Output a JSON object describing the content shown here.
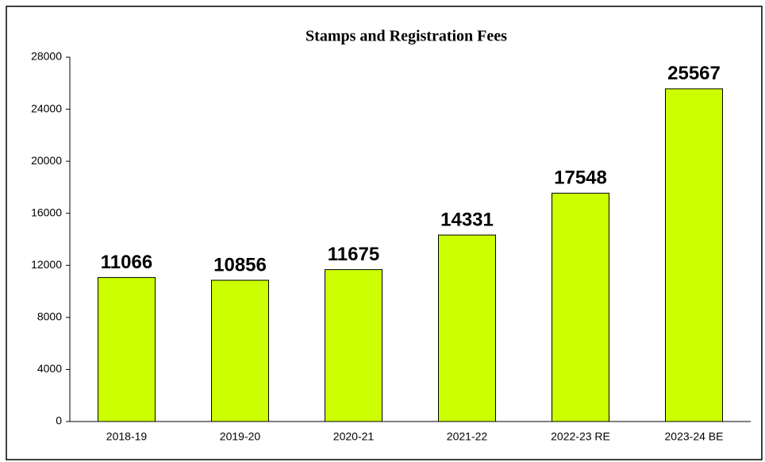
{
  "chart_data": {
    "type": "bar",
    "title": "Stamps and Registration Fees",
    "categories": [
      "2018-19",
      "2019-20",
      "2020-21",
      "2021-22",
      "2022-23 RE",
      "2023-24 BE"
    ],
    "values": [
      11066,
      10856,
      11675,
      14331,
      17548,
      25567
    ],
    "color": "#ccff00",
    "ylim": [
      0,
      28000
    ],
    "yticks": [
      0,
      4000,
      8000,
      12000,
      16000,
      20000,
      24000,
      28000
    ],
    "grid": false
  }
}
